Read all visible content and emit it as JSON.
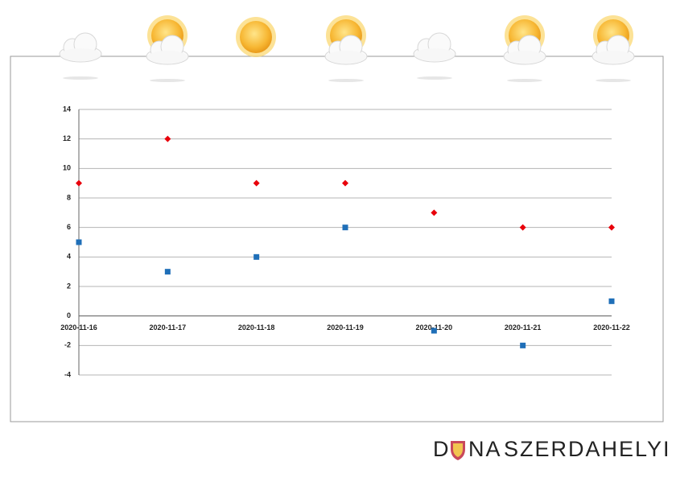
{
  "chart_data": {
    "type": "scatter",
    "categories": [
      "2020-11-16",
      "2020-11-17",
      "2020-11-18",
      "2020-11-19",
      "2020-11-20",
      "2020-11-21",
      "2020-11-22"
    ],
    "series": [
      {
        "color": "#e8000b",
        "marker": "diamond",
        "values": [
          9,
          12,
          9,
          9,
          7,
          6,
          6
        ]
      },
      {
        "color": "#1f6fb8",
        "marker": "square",
        "values": [
          5,
          3,
          4,
          6,
          -1,
          -2,
          1
        ]
      }
    ],
    "ylim": [
      -4,
      14
    ],
    "yticks": [
      -4,
      -2,
      0,
      2,
      4,
      6,
      8,
      10,
      12,
      14
    ],
    "grid": true
  },
  "logo": {
    "parts": [
      "D",
      "NA",
      "SZERDAHELYI"
    ]
  }
}
